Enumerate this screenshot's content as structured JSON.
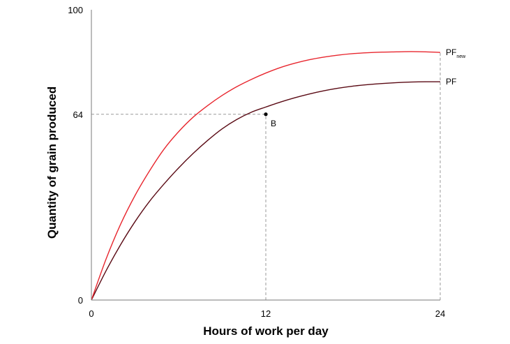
{
  "chart_data": {
    "type": "line",
    "title": "",
    "xlabel": "Hours of work per day",
    "ylabel": "Quantity of grain produced",
    "xlim": [
      0,
      24
    ],
    "ylim": [
      0,
      100
    ],
    "x_ticks": [
      "0",
      "12",
      "24"
    ],
    "y_ticks": [
      "0",
      "64",
      "100"
    ],
    "grid": false,
    "series": [
      {
        "name": "PF",
        "name_sub": "",
        "color": "#5a0a14",
        "x": [
          0,
          1,
          2,
          3,
          4,
          5,
          6,
          7,
          8,
          9,
          10,
          11,
          12,
          13,
          14,
          15,
          16,
          17,
          18,
          19,
          20,
          21,
          22,
          23,
          24
        ],
        "y": [
          0,
          10,
          19,
          27,
          34,
          40,
          45.5,
          50.5,
          55,
          59,
          62.2,
          64.7,
          66.5,
          68.2,
          69.7,
          71,
          72.1,
          73,
          73.7,
          74.2,
          74.6,
          74.9,
          75.1,
          75.2,
          75.2
        ]
      },
      {
        "name": "PF",
        "name_sub": "new",
        "color": "#e8262e",
        "x": [
          0,
          1,
          2,
          3,
          4,
          5,
          6,
          7,
          8,
          9,
          10,
          11,
          12,
          13,
          14,
          15,
          16,
          17,
          18,
          19,
          20,
          21,
          22,
          23,
          24
        ],
        "y": [
          0,
          14,
          26,
          36,
          44.5,
          52,
          58,
          63,
          67,
          70.5,
          73.5,
          76,
          78.2,
          80.1,
          81.6,
          82.8,
          83.7,
          84.4,
          84.9,
          85.2,
          85.4,
          85.5,
          85.6,
          85.5,
          85.3
        ]
      }
    ],
    "annotations": [
      {
        "label": "B",
        "x": 12,
        "y": 64,
        "marker": "point",
        "color": "#000000"
      }
    ],
    "guide_lines": [
      {
        "from": [
          0,
          64
        ],
        "to": [
          12,
          64
        ],
        "style": "dashed"
      },
      {
        "from": [
          12,
          0
        ],
        "to": [
          12,
          64
        ],
        "style": "dashed"
      },
      {
        "from": [
          24,
          0
        ],
        "to": [
          24,
          85.3
        ],
        "style": "dashed"
      }
    ]
  }
}
